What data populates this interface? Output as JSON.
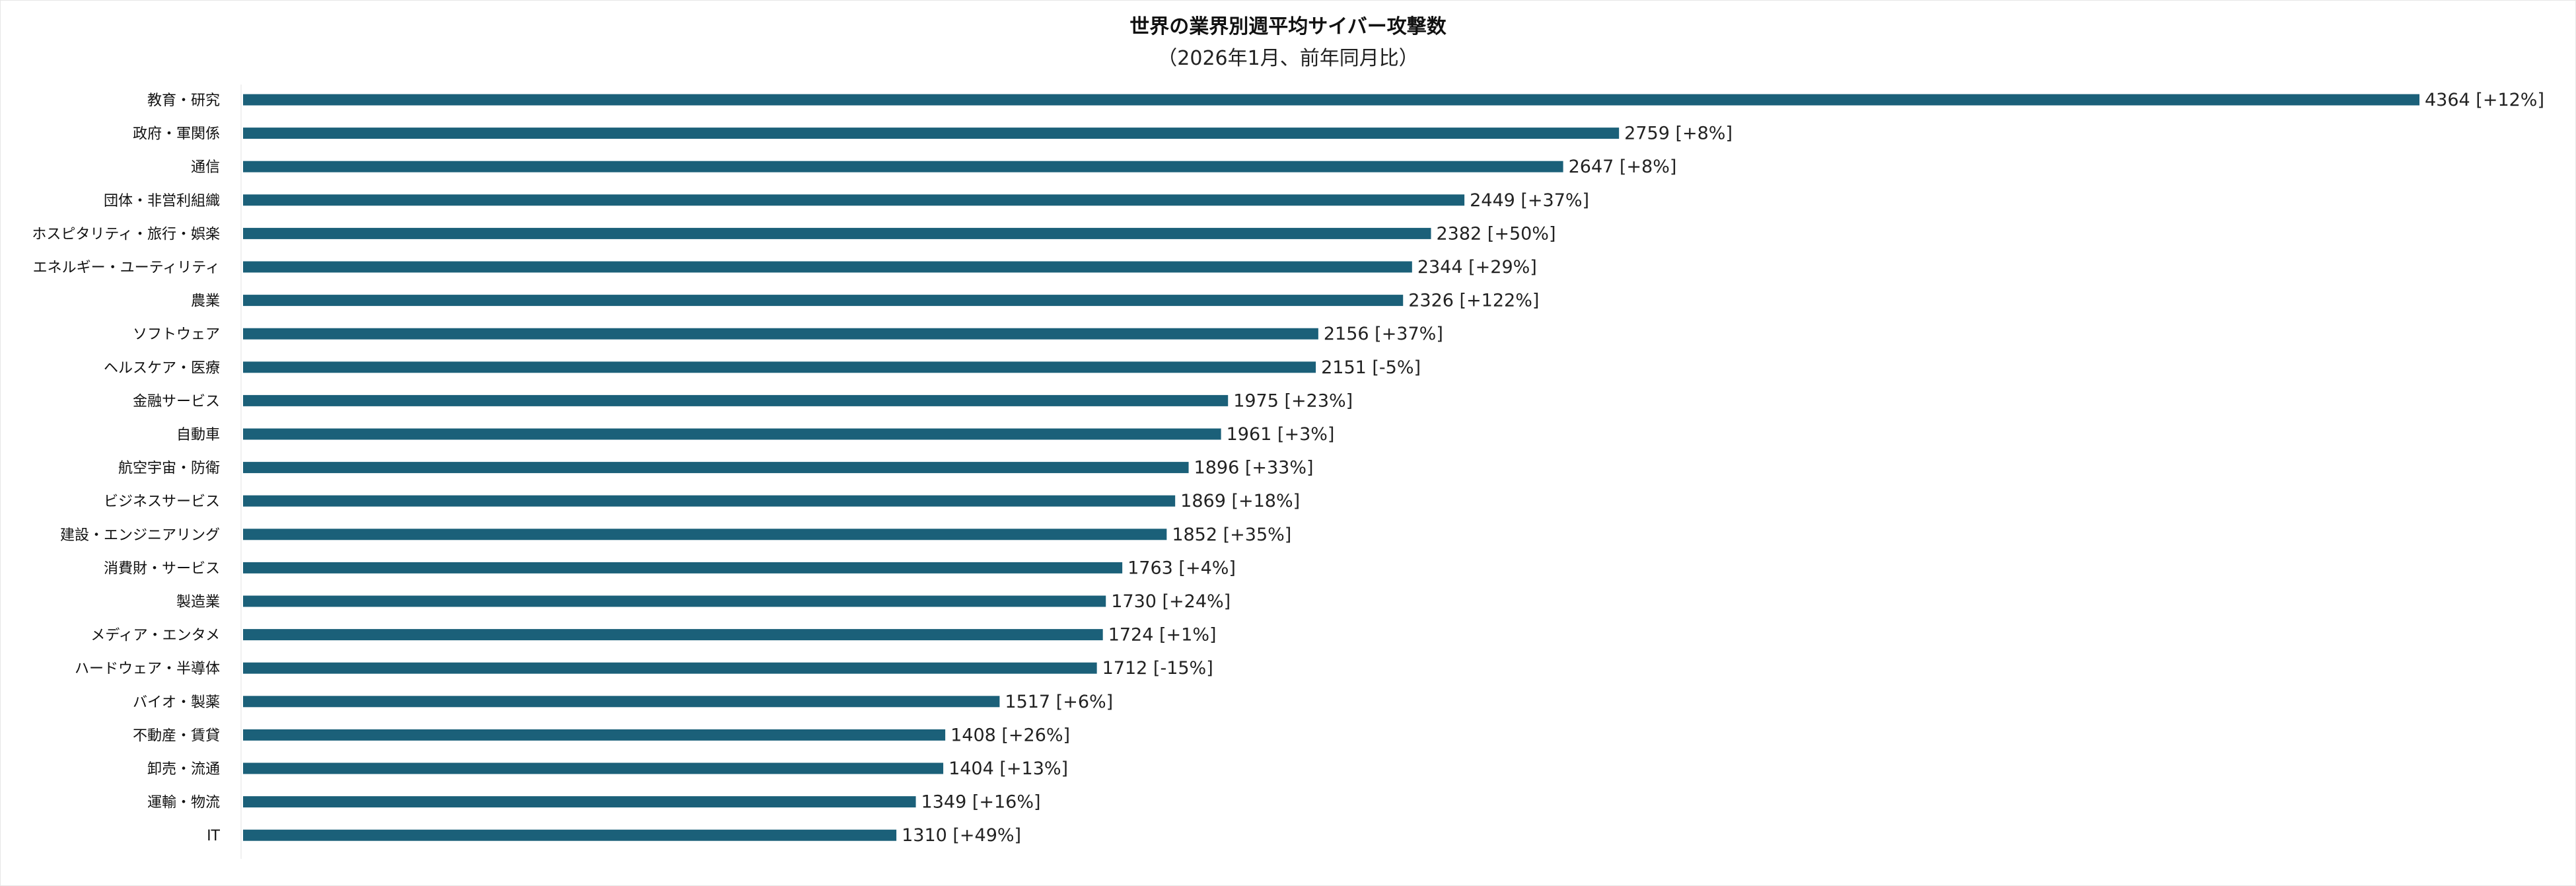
{
  "chart_data": {
    "type": "bar",
    "orientation": "horizontal",
    "title": "世界の業界別週平均サイバー攻撃数",
    "subtitle": "（2026年1月、前年同月比）",
    "xlabel": "",
    "ylabel": "",
    "xlim": [
      0,
      4364
    ],
    "grid": false,
    "legend": "none",
    "bar_color": "#1b6079",
    "categories": [
      "教育・研究",
      "政府・軍関係",
      "通信",
      "団体・非営利組織",
      "ホスピタリティ・旅行・娯楽",
      "エネルギー・ユーティリティ",
      "農業",
      "ソフトウェア",
      "ヘルスケア・医療",
      "金融サービス",
      "自動車",
      "航空宇宙・防衛",
      "ビジネスサービス",
      "建設・エンジニアリング",
      "消費財・サービス",
      "製造業",
      "メディア・エンタメ",
      "ハードウェア・半導体",
      "バイオ・製薬",
      "不動産・賃貸",
      "卸売・流通",
      "運輸・物流",
      "IT"
    ],
    "values": [
      4364,
      2759,
      2647,
      2449,
      2382,
      2344,
      2326,
      2156,
      2151,
      1975,
      1961,
      1896,
      1869,
      1852,
      1763,
      1730,
      1724,
      1712,
      1517,
      1408,
      1404,
      1349,
      1310
    ],
    "yoy_change": [
      "+12%",
      "+8%",
      "+8%",
      "+37%",
      "+50%",
      "+29%",
      "+122%",
      "+37%",
      "-5%",
      "+23%",
      "+3%",
      "+33%",
      "+18%",
      "+35%",
      "+4%",
      "+24%",
      "+1%",
      "-15%",
      "+6%",
      "+26%",
      "+13%",
      "+16%",
      "+49%"
    ],
    "data_labels": [
      "4364 [+12%]",
      "2759 [+8%]",
      "2647 [+8%]",
      "2449 [+37%]",
      "2382 [+50%]",
      "2344 [+29%]",
      "2326 [+122%]",
      "2156 [+37%]",
      "2151 [-5%]",
      "1975 [+23%]",
      "1961 [+3%]",
      "1896 [+33%]",
      "1869 [+18%]",
      "1852 [+35%]",
      "1763 [+4%]",
      "1730 [+24%]",
      "1724 [+1%]",
      "1712 [-15%]",
      "1517 [+6%]",
      "1408 [+26%]",
      "1404 [+13%]",
      "1349 [+16%]",
      "1310 [+49%]"
    ]
  }
}
